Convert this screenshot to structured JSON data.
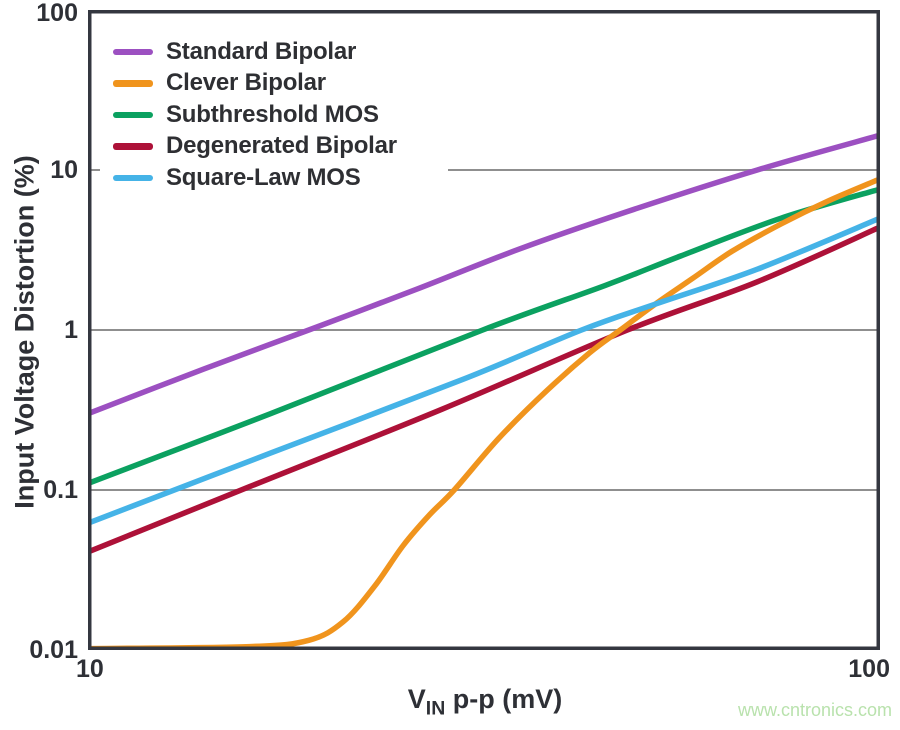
{
  "watermark": {
    "text": "www.cntronics.com",
    "color": "#b9e2ad"
  },
  "chart_data": {
    "type": "line",
    "title": "",
    "xlabel": {
      "prefix": "V",
      "subscript": "IN",
      "suffix": " p-p (mV)"
    },
    "ylabel": "Input Voltage Distortion (%)",
    "x_scale": "log",
    "y_scale": "log",
    "xlim": [
      10,
      100
    ],
    "ylim": [
      0.01,
      100
    ],
    "x_ticks": [
      {
        "value": 10,
        "label": "10"
      },
      {
        "value": 100,
        "label": "100"
      }
    ],
    "y_ticks": [
      {
        "value": 100,
        "label": "100"
      },
      {
        "value": 10,
        "label": "10"
      },
      {
        "value": 1,
        "label": "1"
      },
      {
        "value": 0.1,
        "label": "0.1"
      },
      {
        "value": 0.01,
        "label": "0.01"
      }
    ],
    "gridlines_y": [
      10,
      1,
      0.1
    ],
    "grid_on": true,
    "grid_color": "#8f8f8f",
    "axis_color": "#343740",
    "text_color": "#2e3036",
    "legend_position": "top-left",
    "series": [
      {
        "name": "Standard Bipolar",
        "color": "#9c50c1",
        "points": [
          [
            10,
            0.3
          ],
          [
            14,
            0.57
          ],
          [
            19,
            1.0
          ],
          [
            26,
            1.8
          ],
          [
            35,
            3.2
          ],
          [
            48,
            5.5
          ],
          [
            70,
            10
          ],
          [
            100,
            16.5
          ]
        ]
      },
      {
        "name": "Clever Bipolar",
        "color": "#f0941d",
        "points": [
          [
            10,
            0.0102
          ],
          [
            16,
            0.0105
          ],
          [
            19,
            0.0115
          ],
          [
            21,
            0.015
          ],
          [
            23,
            0.025
          ],
          [
            25,
            0.045
          ],
          [
            27,
            0.07
          ],
          [
            29,
            0.1
          ],
          [
            33,
            0.21
          ],
          [
            38,
            0.42
          ],
          [
            43,
            0.72
          ],
          [
            47,
            1.0
          ],
          [
            52,
            1.45
          ],
          [
            58,
            2.1
          ],
          [
            65,
            3.1
          ],
          [
            75,
            4.6
          ],
          [
            86,
            6.4
          ],
          [
            100,
            8.8
          ]
        ]
      },
      {
        "name": "Subthreshold MOS",
        "color": "#0ba160",
        "points": [
          [
            10,
            0.11
          ],
          [
            17,
            0.3
          ],
          [
            31.5,
            1.0
          ],
          [
            45,
            1.9
          ],
          [
            56,
            2.9
          ],
          [
            75,
            5.0
          ],
          [
            100,
            7.6
          ]
        ]
      },
      {
        "name": "Degenerated Bipolar",
        "color": "#ad1138",
        "points": [
          [
            10,
            0.041
          ],
          [
            16,
            0.105
          ],
          [
            28,
            0.32
          ],
          [
            48,
            1.0
          ],
          [
            70,
            2.0
          ],
          [
            100,
            4.4
          ]
        ]
      },
      {
        "name": "Square-Law MOS",
        "color": "#45b3e7",
        "points": [
          [
            10,
            0.062
          ],
          [
            17,
            0.17
          ],
          [
            30,
            0.5
          ],
          [
            42,
            1.0
          ],
          [
            52,
            1.45
          ],
          [
            70,
            2.4
          ],
          [
            100,
            5.0
          ]
        ]
      }
    ]
  }
}
